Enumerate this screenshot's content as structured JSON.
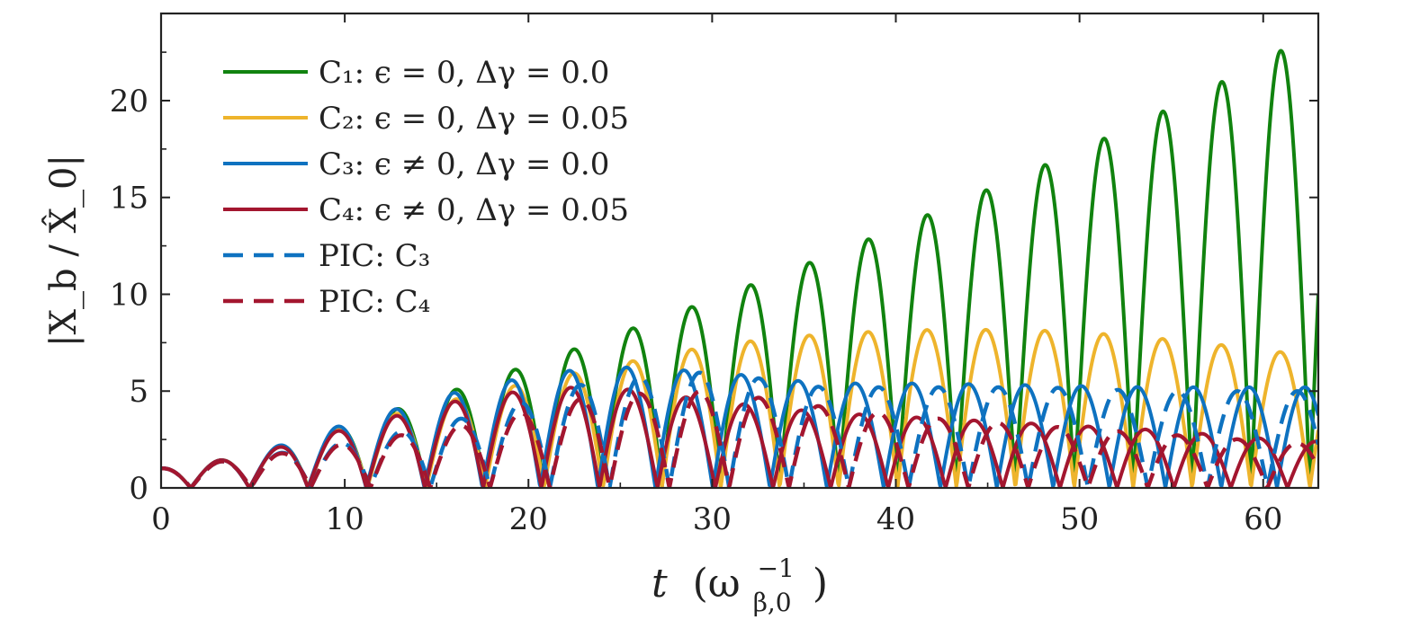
{
  "chart_data": {
    "type": "line",
    "title": "",
    "xlabel": {
      "main": "t",
      "open": "(ω",
      "sub": "β,0",
      "sup": "−1",
      "close": ")"
    },
    "ylabel": "|X_b / X̂_0|",
    "xlim": [
      0,
      63
    ],
    "ylim": [
      0,
      24.5
    ],
    "x_ticks": [
      0,
      10,
      20,
      30,
      40,
      50,
      60
    ],
    "x_tick_labels": [
      "0",
      "10",
      "20",
      "30",
      "40",
      "50",
      "60"
    ],
    "y_ticks": [
      0,
      5,
      10,
      15,
      20
    ],
    "y_tick_labels": [
      "0",
      "5",
      "10",
      "15",
      "20"
    ],
    "grid": false,
    "legend_position": "top-left",
    "series": [
      {
        "id": "C1",
        "name": "C₁: ϵ = 0, Δγ = 0.0",
        "color": "#11830f",
        "style": "solid",
        "model": {
          "omega": 0.9795,
          "phase": 1.5708,
          "peaks": [
            [
              0,
              1
            ],
            [
              4.5,
              1.6
            ],
            [
              11,
              3.5
            ],
            [
              17.4,
              5.5
            ],
            [
              23.8,
              7.6
            ],
            [
              30.2,
              9.8
            ],
            [
              36.6,
              12.1
            ],
            [
              43,
              14.6
            ],
            [
              49.4,
              17.2
            ],
            [
              55.8,
              20
            ],
            [
              62,
              23.1
            ]
          ]
        }
      },
      {
        "id": "C2",
        "name": "C₂: ϵ = 0, Δγ = 0.05",
        "color": "#eeb42c",
        "style": "solid",
        "model": {
          "omega": 0.9795,
          "phase": 1.5708,
          "peaks": [
            [
              0,
              1
            ],
            [
              4.5,
              1.6
            ],
            [
              11,
              3.4
            ],
            [
              17.4,
              4.9
            ],
            [
              23.8,
              6.2
            ],
            [
              30.2,
              7.4
            ],
            [
              36.6,
              8.0
            ],
            [
              43,
              8.2
            ],
            [
              49.4,
              8.1
            ],
            [
              55.8,
              7.6
            ],
            [
              62,
              6.9
            ]
          ]
        }
      },
      {
        "id": "C3",
        "name": "C₃: ϵ ≠ 0, Δγ = 0.0",
        "color": "#0e72c0",
        "style": "solid",
        "model": {
          "omega": 0.9795,
          "phase": 1.5708,
          "drift": 0.03,
          "peaks": [
            [
              0,
              1
            ],
            [
              4.5,
              1.6
            ],
            [
              11,
              3.6
            ],
            [
              17.4,
              5.3
            ],
            [
              23.8,
              6.3
            ],
            [
              30,
              6.0
            ],
            [
              36,
              5.4
            ],
            [
              42,
              5.4
            ],
            [
              48,
              5.3
            ],
            [
              54,
              5.2
            ],
            [
              62,
              5.2
            ]
          ]
        }
      },
      {
        "id": "C4",
        "name": "C₄: ϵ ≠ 0, Δγ = 0.05",
        "color": "#a3162f",
        "style": "solid",
        "model": {
          "omega": 0.9795,
          "phase": 1.5708,
          "drift": 0.02,
          "peaks": [
            [
              0,
              1
            ],
            [
              4.5,
              1.6
            ],
            [
              11,
              3.3
            ],
            [
              17.4,
              4.8
            ],
            [
              23.8,
              5.3
            ],
            [
              30,
              4.5
            ],
            [
              36,
              3.9
            ],
            [
              42,
              3.6
            ],
            [
              48,
              3.3
            ],
            [
              54,
              3.0
            ],
            [
              62,
              2.4
            ]
          ]
        }
      },
      {
        "id": "PIC-C3",
        "name": "PIC: C₃",
        "color": "#0e72c0",
        "style": "dashed",
        "model": {
          "omega": 0.965,
          "phase": 1.5708,
          "peaks": [
            [
              0,
              1
            ],
            [
              4.5,
              1.5
            ],
            [
              11,
              2.5
            ],
            [
              17.4,
              3.8
            ],
            [
              23.8,
              5.6
            ],
            [
              30,
              6.0
            ],
            [
              36,
              5.2
            ],
            [
              42,
              5.2
            ],
            [
              48,
              5.2
            ],
            [
              54,
              5.0
            ],
            [
              62,
              5.0
            ]
          ]
        }
      },
      {
        "id": "PIC-C4",
        "name": "PIC: C₄",
        "color": "#a3162f",
        "style": "dashed",
        "model": {
          "omega": 0.965,
          "phase": 1.5708,
          "peaks": [
            [
              0,
              1
            ],
            [
              4.5,
              1.5
            ],
            [
              11,
              2.4
            ],
            [
              17.4,
              3.4
            ],
            [
              23.8,
              4.8
            ],
            [
              30,
              5.0
            ],
            [
              36,
              4.2
            ],
            [
              42,
              3.6
            ],
            [
              48,
              3.2
            ],
            [
              54,
              2.8
            ],
            [
              62,
              2.3
            ]
          ]
        }
      }
    ]
  }
}
